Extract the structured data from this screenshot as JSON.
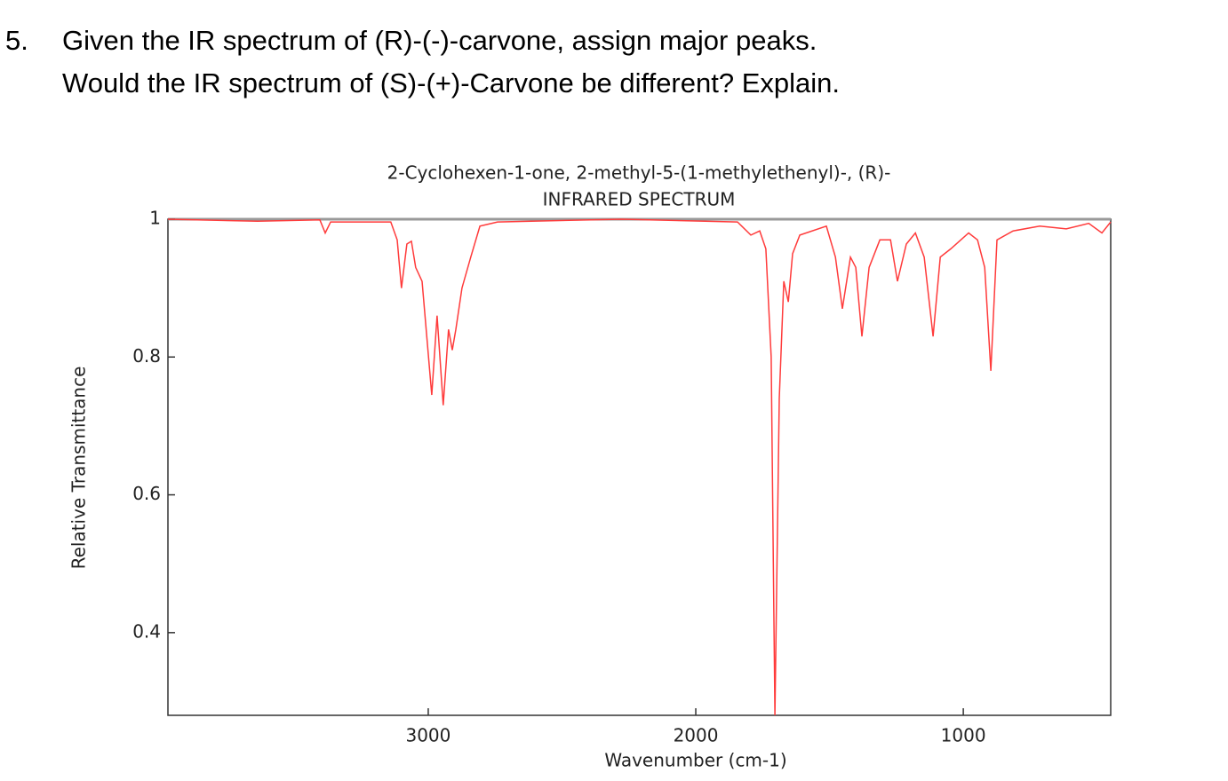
{
  "question": {
    "number": "5.",
    "lines": [
      "Given the IR spectrum of (R)-(-)-carvone, assign major peaks.",
      "Would the IR spectrum of (S)-(+)-Carvone be different? Explain."
    ]
  },
  "chart_data": {
    "type": "line",
    "title": "2-Cyclohexen-1-one, 2-methyl-5-(1-methylethenyl)-, (R)-",
    "subtitle": "INFRARED SPECTRUM",
    "x_label": "Wavenumber (cm-1)",
    "y_label": "Relative Transmittance",
    "color": "#ff3b3b",
    "xlim": [
      3973,
      449
    ],
    "ylim": [
      0.28,
      1
    ],
    "xticks": [
      3000,
      2000,
      1000
    ],
    "yticks": [
      0.4,
      0.6,
      0.8,
      1
    ],
    "x": [
      3973,
      3638,
      3405,
      3385,
      3365,
      3140,
      3116,
      3100,
      3080,
      3063,
      3047,
      3023,
      2987,
      2967,
      2944,
      2924,
      2910,
      2897,
      2874,
      2841,
      2807,
      2741,
      2276,
      1844,
      1794,
      1761,
      1738,
      1718,
      1704,
      1688,
      1671,
      1654,
      1638,
      1611,
      1512,
      1478,
      1452,
      1422,
      1402,
      1379,
      1352,
      1312,
      1272,
      1246,
      1213,
      1179,
      1146,
      1113,
      1086,
      1047,
      980,
      947,
      920,
      897,
      874,
      814,
      714,
      615,
      531,
      482,
      449
    ],
    "values": [
      1.0,
      0.997,
      0.999,
      0.98,
      0.996,
      0.996,
      0.97,
      0.9,
      0.964,
      0.968,
      0.93,
      0.91,
      0.745,
      0.86,
      0.73,
      0.84,
      0.81,
      0.84,
      0.9,
      0.945,
      0.99,
      0.996,
      1.0,
      0.996,
      0.977,
      0.983,
      0.957,
      0.8,
      0.28,
      0.74,
      0.91,
      0.88,
      0.95,
      0.977,
      0.99,
      0.945,
      0.87,
      0.945,
      0.93,
      0.83,
      0.93,
      0.97,
      0.97,
      0.91,
      0.964,
      0.98,
      0.945,
      0.83,
      0.945,
      0.957,
      0.98,
      0.97,
      0.93,
      0.78,
      0.97,
      0.983,
      0.99,
      0.986,
      0.994,
      0.98,
      0.996
    ]
  }
}
